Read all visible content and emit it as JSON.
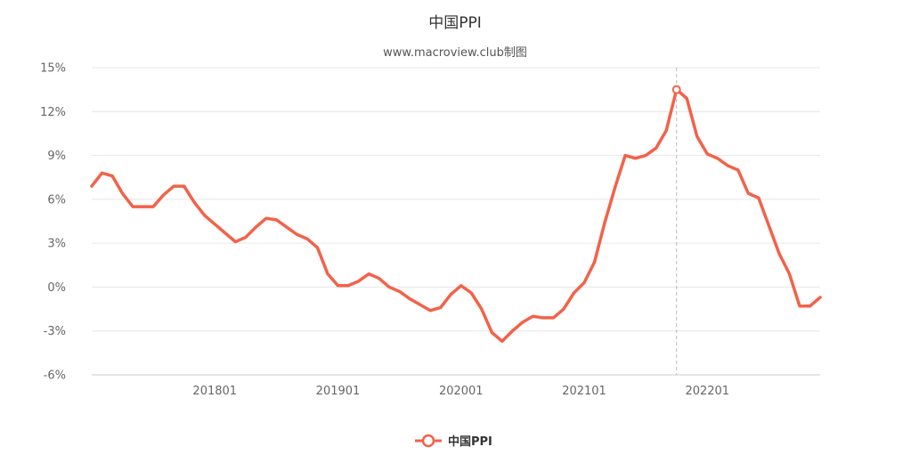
{
  "chart_data": {
    "type": "line",
    "title": "中国PPI",
    "subtitle": "www.macroview.club制图",
    "ylim": [
      -6,
      15
    ],
    "yticks": [
      15,
      12,
      9,
      6,
      3,
      0,
      -3,
      -6
    ],
    "ytick_labels": [
      "15%",
      "12%",
      "9%",
      "6%",
      "3%",
      "0%",
      "-3%",
      "-6%"
    ],
    "xtick_labels": [
      "201801",
      "201901",
      "202001",
      "202101",
      "202201"
    ],
    "xticks": [
      "2018-01",
      "2019-01",
      "2020-01",
      "2021-01",
      "2022-01"
    ],
    "grid": true,
    "legend_position": "bottom-center",
    "highlighted_point": "2021-10",
    "colors": {
      "series": "#f2624a",
      "grid": "#e6e6e6",
      "crosshair": "#bbbbbb",
      "axis": "#cccccc"
    },
    "x": [
      "2017-01",
      "2017-02",
      "2017-03",
      "2017-04",
      "2017-05",
      "2017-06",
      "2017-07",
      "2017-08",
      "2017-09",
      "2017-10",
      "2017-11",
      "2017-12",
      "2018-01",
      "2018-02",
      "2018-03",
      "2018-04",
      "2018-05",
      "2018-06",
      "2018-07",
      "2018-08",
      "2018-09",
      "2018-10",
      "2018-11",
      "2018-12",
      "2019-01",
      "2019-02",
      "2019-03",
      "2019-04",
      "2019-05",
      "2019-06",
      "2019-07",
      "2019-08",
      "2019-09",
      "2019-10",
      "2019-11",
      "2019-12",
      "2020-01",
      "2020-02",
      "2020-03",
      "2020-04",
      "2020-05",
      "2020-06",
      "2020-07",
      "2020-08",
      "2020-09",
      "2020-10",
      "2020-11",
      "2020-12",
      "2021-01",
      "2021-02",
      "2021-03",
      "2021-04",
      "2021-05",
      "2021-06",
      "2021-07",
      "2021-08",
      "2021-09",
      "2021-10",
      "2021-11",
      "2021-12",
      "2022-01",
      "2022-02",
      "2022-03",
      "2022-04",
      "2022-05",
      "2022-06",
      "2022-07",
      "2022-08",
      "2022-09",
      "2022-10",
      "2022-11",
      "2022-12"
    ],
    "series": [
      {
        "name": "中国PPI",
        "values": [
          6.9,
          7.8,
          7.6,
          6.4,
          5.5,
          5.5,
          5.5,
          6.3,
          6.9,
          6.9,
          5.8,
          4.9,
          4.3,
          3.7,
          3.1,
          3.4,
          4.1,
          4.7,
          4.6,
          4.1,
          3.6,
          3.3,
          2.7,
          0.9,
          0.1,
          0.1,
          0.4,
          0.9,
          0.6,
          0.0,
          -0.3,
          -0.8,
          -1.2,
          -1.6,
          -1.4,
          -0.5,
          0.1,
          -0.4,
          -1.5,
          -3.1,
          -3.7,
          -3.0,
          -2.4,
          -2.0,
          -2.1,
          -2.1,
          -1.5,
          -0.4,
          0.3,
          1.7,
          4.4,
          6.8,
          9.0,
          8.8,
          9.0,
          9.5,
          10.7,
          13.5,
          12.9,
          10.3,
          9.1,
          8.8,
          8.3,
          8.0,
          6.4,
          6.1,
          4.2,
          2.3,
          0.9,
          -1.3,
          -1.3,
          -0.7
        ]
      }
    ]
  }
}
